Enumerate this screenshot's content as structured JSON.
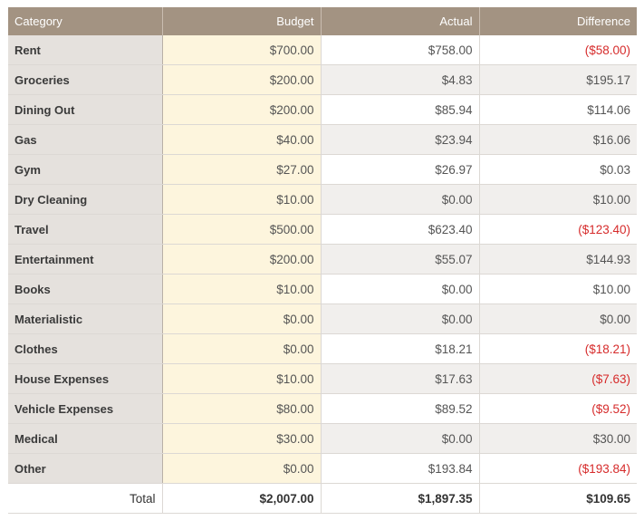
{
  "table": {
    "headers": {
      "category": "Category",
      "budget": "Budget",
      "actual": "Actual",
      "difference": "Difference"
    },
    "rows": [
      {
        "category": "Rent",
        "budget": "$700.00",
        "actual": "$758.00",
        "difference": "($58.00)",
        "negative": true
      },
      {
        "category": "Groceries",
        "budget": "$200.00",
        "actual": "$4.83",
        "difference": "$195.17",
        "negative": false
      },
      {
        "category": "Dining Out",
        "budget": "$200.00",
        "actual": "$85.94",
        "difference": "$114.06",
        "negative": false
      },
      {
        "category": "Gas",
        "budget": "$40.00",
        "actual": "$23.94",
        "difference": "$16.06",
        "negative": false
      },
      {
        "category": "Gym",
        "budget": "$27.00",
        "actual": "$26.97",
        "difference": "$0.03",
        "negative": false
      },
      {
        "category": "Dry Cleaning",
        "budget": "$10.00",
        "actual": "$0.00",
        "difference": "$10.00",
        "negative": false
      },
      {
        "category": "Travel",
        "budget": "$500.00",
        "actual": "$623.40",
        "difference": "($123.40)",
        "negative": true
      },
      {
        "category": "Entertainment",
        "budget": "$200.00",
        "actual": "$55.07",
        "difference": "$144.93",
        "negative": false
      },
      {
        "category": "Books",
        "budget": "$10.00",
        "actual": "$0.00",
        "difference": "$10.00",
        "negative": false
      },
      {
        "category": "Materialistic",
        "budget": "$0.00",
        "actual": "$0.00",
        "difference": "$0.00",
        "negative": false
      },
      {
        "category": "Clothes",
        "budget": "$0.00",
        "actual": "$18.21",
        "difference": "($18.21)",
        "negative": true
      },
      {
        "category": "House Expenses",
        "budget": "$10.00",
        "actual": "$17.63",
        "difference": "($7.63)",
        "negative": true
      },
      {
        "category": "Vehicle Expenses",
        "budget": "$80.00",
        "actual": "$89.52",
        "difference": "($9.52)",
        "negative": true
      },
      {
        "category": "Medical",
        "budget": "$30.00",
        "actual": "$0.00",
        "difference": "$30.00",
        "negative": false
      },
      {
        "category": "Other",
        "budget": "$0.00",
        "actual": "$193.84",
        "difference": "($193.84)",
        "negative": true
      }
    ],
    "total": {
      "label": "Total",
      "budget": "$2,007.00",
      "actual": "$1,897.35",
      "difference": "$109.65"
    }
  },
  "colors": {
    "header_bg": "#a39382",
    "category_bg": "#e5e1dd",
    "budget_bg": "#fdf5dd",
    "stripe_bg": "#f1efed",
    "negative_text": "#d62b2b"
  }
}
